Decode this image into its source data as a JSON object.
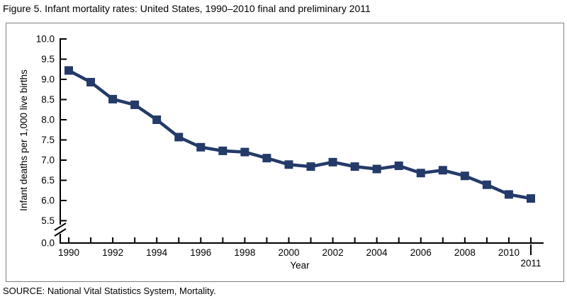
{
  "figure": {
    "title": "Figure 5. Infant mortality rates: United States, 1990–2010 final and preliminary 2011",
    "source": "SOURCE: National Vital Statistics System, Mortality."
  },
  "chart_data": {
    "type": "line",
    "title": "Figure 5. Infant mortality rates: United States, 1990–2010 final and preliminary 2011",
    "xlabel": "Year",
    "ylabel": "Infant deaths per 1,000 live births",
    "x": [
      1990,
      1991,
      1992,
      1993,
      1994,
      1995,
      1996,
      1997,
      1998,
      1999,
      2000,
      2001,
      2002,
      2003,
      2004,
      2005,
      2006,
      2007,
      2008,
      2009,
      2010,
      2011
    ],
    "values": [
      9.22,
      8.93,
      8.51,
      8.37,
      8.0,
      7.57,
      7.32,
      7.23,
      7.2,
      7.05,
      6.89,
      6.84,
      6.95,
      6.84,
      6.78,
      6.86,
      6.68,
      6.75,
      6.61,
      6.39,
      6.15,
      6.05
    ],
    "y_ticks": [
      0.0,
      5.5,
      6.0,
      6.5,
      7.0,
      7.5,
      8.0,
      8.5,
      9.0,
      9.5,
      10.0
    ],
    "y_tick_labels": [
      "0.0",
      "5.5",
      "6.0",
      "6.5",
      "7.0",
      "7.5",
      "8.0",
      "8.5",
      "9.0",
      "9.5",
      "10.0"
    ],
    "x_labeled_years": [
      1990,
      1992,
      1994,
      1996,
      1998,
      2000,
      2002,
      2004,
      2006,
      2008,
      2010
    ],
    "x_offset_label": "2011",
    "axis_break": true,
    "ylim_display": [
      5.5,
      10.0
    ],
    "grid": false,
    "legend": "none",
    "marker": "square",
    "colors": {
      "line": "#243A69",
      "axis": "#000000",
      "frame_border": "#808080",
      "background": "#FFFFFF",
      "text": "#000000"
    }
  }
}
